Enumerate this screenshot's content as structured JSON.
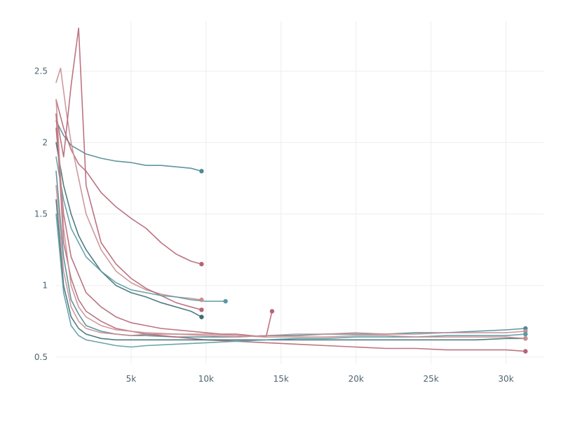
{
  "chart_data": {
    "type": "line",
    "title": "",
    "xlabel": "",
    "ylabel": "",
    "xlim": [
      0,
      32500
    ],
    "ylim": [
      0.45,
      2.85
    ],
    "grid": true,
    "legend": "none",
    "x_ticks": [
      {
        "value": 5000,
        "label": "5k"
      },
      {
        "value": 10000,
        "label": "10k"
      },
      {
        "value": 15000,
        "label": "15k"
      },
      {
        "value": 20000,
        "label": "20k"
      },
      {
        "value": 25000,
        "label": "25k"
      },
      {
        "value": 30000,
        "label": "30k"
      }
    ],
    "y_ticks": [
      {
        "value": 0.5,
        "label": "0.5"
      },
      {
        "value": 1,
        "label": "1"
      },
      {
        "value": 1.5,
        "label": "1.5"
      },
      {
        "value": 2,
        "label": "2"
      },
      {
        "value": 2.5,
        "label": "2.5"
      }
    ],
    "series": [
      {
        "color": "#4e8a94",
        "x": [
          0,
          500,
          1000,
          2000,
          3000,
          4000,
          5000,
          6000,
          7000,
          8000,
          9000,
          9700
        ],
        "y": [
          2.15,
          2.05,
          1.98,
          1.92,
          1.89,
          1.87,
          1.86,
          1.84,
          1.84,
          1.83,
          1.82,
          1.8
        ]
      },
      {
        "color": "#b56576",
        "x": [
          0,
          500,
          1000,
          1500,
          2000,
          3000,
          4000,
          5000,
          6000,
          7000,
          8000,
          9000,
          9700
        ],
        "y": [
          2.3,
          2.1,
          1.95,
          1.85,
          1.8,
          1.65,
          1.55,
          1.47,
          1.4,
          1.3,
          1.22,
          1.17,
          1.15
        ]
      },
      {
        "color": "#c98f92",
        "x": [
          0,
          300,
          700,
          1000,
          1500,
          2000,
          3000,
          4000,
          5000,
          6000,
          7000,
          8000,
          9000,
          9700
        ],
        "y": [
          2.42,
          2.52,
          2.2,
          2.0,
          1.75,
          1.5,
          1.25,
          1.1,
          1.02,
          0.97,
          0.94,
          0.92,
          0.91,
          0.9
        ]
      },
      {
        "color": "#b56576",
        "x": [
          0,
          500,
          1000,
          1500,
          2000,
          3000,
          4000,
          5000,
          6000,
          7000,
          8000,
          9000,
          9700
        ],
        "y": [
          2.2,
          1.9,
          2.4,
          2.8,
          1.7,
          1.3,
          1.15,
          1.05,
          0.98,
          0.93,
          0.88,
          0.85,
          0.83
        ]
      },
      {
        "color": "#3d6e72",
        "x": [
          0,
          500,
          1000,
          1500,
          2000,
          3000,
          4000,
          5000,
          6000,
          7000,
          8000,
          9000,
          9700
        ],
        "y": [
          2.0,
          1.7,
          1.5,
          1.35,
          1.25,
          1.1,
          1.0,
          0.95,
          0.92,
          0.88,
          0.85,
          0.82,
          0.78
        ]
      },
      {
        "color": "#5a9aa3",
        "x": [
          0,
          500,
          1000,
          2000,
          3000,
          4000,
          5000,
          6000,
          7000,
          8000,
          9000,
          10000,
          11000,
          11300
        ],
        "y": [
          1.9,
          1.6,
          1.4,
          1.2,
          1.1,
          1.02,
          0.97,
          0.95,
          0.93,
          0.92,
          0.9,
          0.89,
          0.89,
          0.89
        ]
      },
      {
        "color": "#b56576",
        "x": [
          0,
          500,
          1000,
          2000,
          3000,
          4000,
          5000,
          6000,
          7000,
          8000,
          9000,
          10000,
          11000,
          12000,
          13000,
          14000,
          14400
        ],
        "y": [
          2.1,
          1.5,
          1.2,
          0.95,
          0.85,
          0.78,
          0.74,
          0.72,
          0.7,
          0.69,
          0.68,
          0.67,
          0.66,
          0.66,
          0.65,
          0.64,
          0.82
        ]
      },
      {
        "color": "#4e8a94",
        "x": [
          0,
          500,
          1000,
          1500,
          2000,
          3000,
          4000,
          5000,
          6000,
          8000,
          10000,
          12000,
          14000,
          16000,
          18000,
          20000,
          22000,
          24000,
          26000,
          28000,
          30000,
          31300
        ],
        "y": [
          1.8,
          1.2,
          0.9,
          0.8,
          0.72,
          0.68,
          0.66,
          0.65,
          0.65,
          0.64,
          0.64,
          0.64,
          0.65,
          0.65,
          0.66,
          0.66,
          0.66,
          0.67,
          0.67,
          0.68,
          0.69,
          0.7
        ]
      },
      {
        "color": "#c98f92",
        "x": [
          0,
          500,
          1000,
          1500,
          2000,
          3000,
          4000,
          5000,
          6000,
          8000,
          10000,
          12000,
          14000,
          16000,
          18000,
          20000,
          22000,
          24000,
          26000,
          28000,
          30000,
          31300
        ],
        "y": [
          1.7,
          1.1,
          0.85,
          0.75,
          0.7,
          0.67,
          0.66,
          0.65,
          0.66,
          0.66,
          0.65,
          0.64,
          0.65,
          0.66,
          0.66,
          0.67,
          0.66,
          0.66,
          0.67,
          0.67,
          0.67,
          0.68
        ]
      },
      {
        "color": "#b56576",
        "x": [
          0,
          500,
          1000,
          1500,
          2000,
          3000,
          4000,
          5000,
          6000,
          8000,
          10000,
          12000,
          14000,
          16000,
          18000,
          20000,
          22000,
          24000,
          26000,
          28000,
          30000,
          31300
        ],
        "y": [
          2.2,
          1.3,
          1.05,
          0.9,
          0.82,
          0.75,
          0.7,
          0.68,
          0.66,
          0.64,
          0.62,
          0.61,
          0.6,
          0.59,
          0.58,
          0.57,
          0.56,
          0.56,
          0.55,
          0.55,
          0.55,
          0.54
        ]
      },
      {
        "color": "#3d6e72",
        "x": [
          0,
          500,
          1000,
          1500,
          2000,
          3000,
          4000,
          5000,
          6000,
          8000,
          10000,
          12000,
          14000,
          16000,
          18000,
          20000,
          22000,
          24000,
          26000,
          28000,
          30000,
          31300
        ],
        "y": [
          1.6,
          1.0,
          0.78,
          0.7,
          0.66,
          0.63,
          0.62,
          0.62,
          0.62,
          0.62,
          0.62,
          0.62,
          0.62,
          0.62,
          0.62,
          0.62,
          0.62,
          0.62,
          0.62,
          0.62,
          0.63,
          0.63
        ]
      },
      {
        "color": "#5a9aa3",
        "x": [
          0,
          500,
          1000,
          1500,
          2000,
          3000,
          4000,
          5000,
          6000,
          8000,
          10000,
          12000,
          14000,
          16000,
          18000,
          20000,
          22000,
          24000,
          26000,
          28000,
          30000,
          31300
        ],
        "y": [
          1.5,
          0.95,
          0.72,
          0.65,
          0.62,
          0.6,
          0.58,
          0.57,
          0.58,
          0.59,
          0.6,
          0.61,
          0.62,
          0.63,
          0.63,
          0.64,
          0.64,
          0.64,
          0.65,
          0.65,
          0.65,
          0.66
        ]
      },
      {
        "color": "#c98f92",
        "x": [
          0,
          500,
          1000,
          1500,
          2000,
          3000,
          4000,
          5000,
          6000,
          8000,
          10000,
          12000,
          14000,
          16000,
          18000,
          20000,
          22000,
          24000,
          26000,
          28000,
          30000,
          31300
        ],
        "y": [
          2.3,
          1.4,
          1.0,
          0.85,
          0.78,
          0.72,
          0.69,
          0.68,
          0.67,
          0.66,
          0.66,
          0.65,
          0.64,
          0.64,
          0.64,
          0.65,
          0.65,
          0.64,
          0.64,
          0.64,
          0.64,
          0.63
        ]
      }
    ]
  }
}
